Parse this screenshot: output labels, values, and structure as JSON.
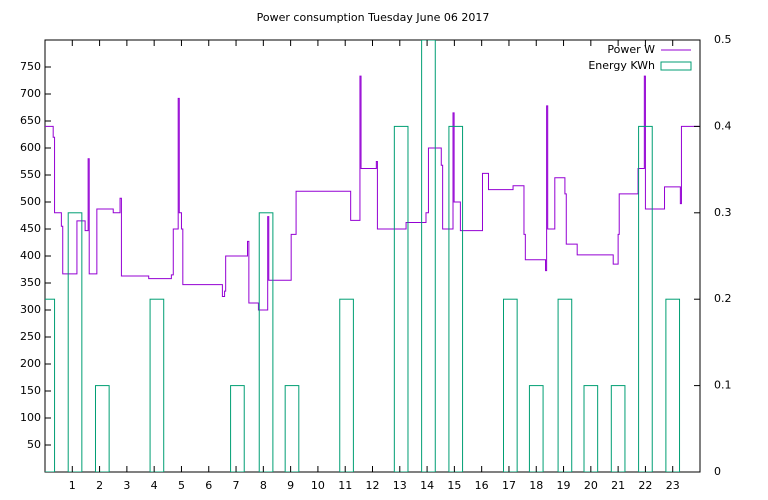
{
  "chart_data": {
    "type": "line",
    "title": "Power consumption Tuesday June 06 2017",
    "legend": "top right",
    "xlim": [
      0,
      24
    ],
    "xticks": [
      1,
      2,
      3,
      4,
      5,
      6,
      7,
      8,
      9,
      10,
      11,
      12,
      13,
      14,
      15,
      16,
      17,
      18,
      19,
      20,
      21,
      22,
      23
    ],
    "ylim": [
      0,
      800
    ],
    "yticks": [
      50,
      100,
      150,
      200,
      250,
      300,
      350,
      400,
      450,
      500,
      550,
      600,
      650,
      700,
      750
    ],
    "y2lim": [
      0,
      0.5
    ],
    "y2ticks": [
      0,
      0.1,
      0.2,
      0.3,
      0.4,
      0.5
    ],
    "series": [
      {
        "name": "Power W",
        "color": "#9400d3",
        "type": "steps",
        "x": [
          0,
          0.3,
          0.35,
          0.6,
          0.65,
          1.17,
          1.47,
          1.58,
          1.62,
          1.9,
          2.5,
          2.75,
          2.8,
          3.8,
          4.63,
          4.7,
          4.88,
          4.92,
          5.0,
          5.05,
          6.5,
          6.58,
          6.62,
          7.42,
          7.47,
          7.82,
          8.16,
          8.2,
          9.02,
          9.2,
          11.2,
          11.54,
          11.58,
          12.14,
          12.18,
          13.23,
          13.96,
          14.05,
          14.52,
          14.57,
          14.95,
          14.99,
          15.22,
          16.03,
          16.25,
          17.15,
          17.55,
          17.6,
          18.34,
          18.38,
          18.42,
          18.68,
          19.05,
          19.1,
          19.5,
          20.82,
          21.0,
          21.04,
          21.73,
          21.96,
          22.0,
          22.7,
          23.28,
          23.32,
          24
        ],
        "values": [
          640,
          620,
          480,
          455,
          367,
          465,
          447,
          580,
          367,
          487,
          480,
          507,
          363,
          358,
          365,
          450,
          692,
          480,
          450,
          347,
          325,
          335,
          400,
          427,
          313,
          300,
          473,
          355,
          440,
          520,
          466,
          733,
          562,
          575,
          450,
          462,
          480,
          600,
          568,
          450,
          665,
          500,
          447,
          553,
          523,
          530,
          440,
          393,
          373,
          678,
          450,
          545,
          515,
          422,
          402,
          385,
          440,
          515,
          562,
          733,
          487,
          528,
          497,
          640,
          640
        ]
      },
      {
        "name": "Energy KWh",
        "color": "#009e73",
        "type": "boxes",
        "axis": "y2",
        "x": [
          0.1,
          1.1,
          2.1,
          4.1,
          7.05,
          8.1,
          9.05,
          11.05,
          13.05,
          14.05,
          15.05,
          17.05,
          18.0,
          19.05,
          20.0,
          21.0,
          22.0,
          23.0
        ],
        "values": [
          0.2,
          0.3,
          0.1,
          0.2,
          0.1,
          0.3,
          0.1,
          0.2,
          0.4,
          0.5,
          0.4,
          0.2,
          0.1,
          0.2,
          0.1,
          0.1,
          0.4,
          0.2
        ]
      }
    ]
  }
}
